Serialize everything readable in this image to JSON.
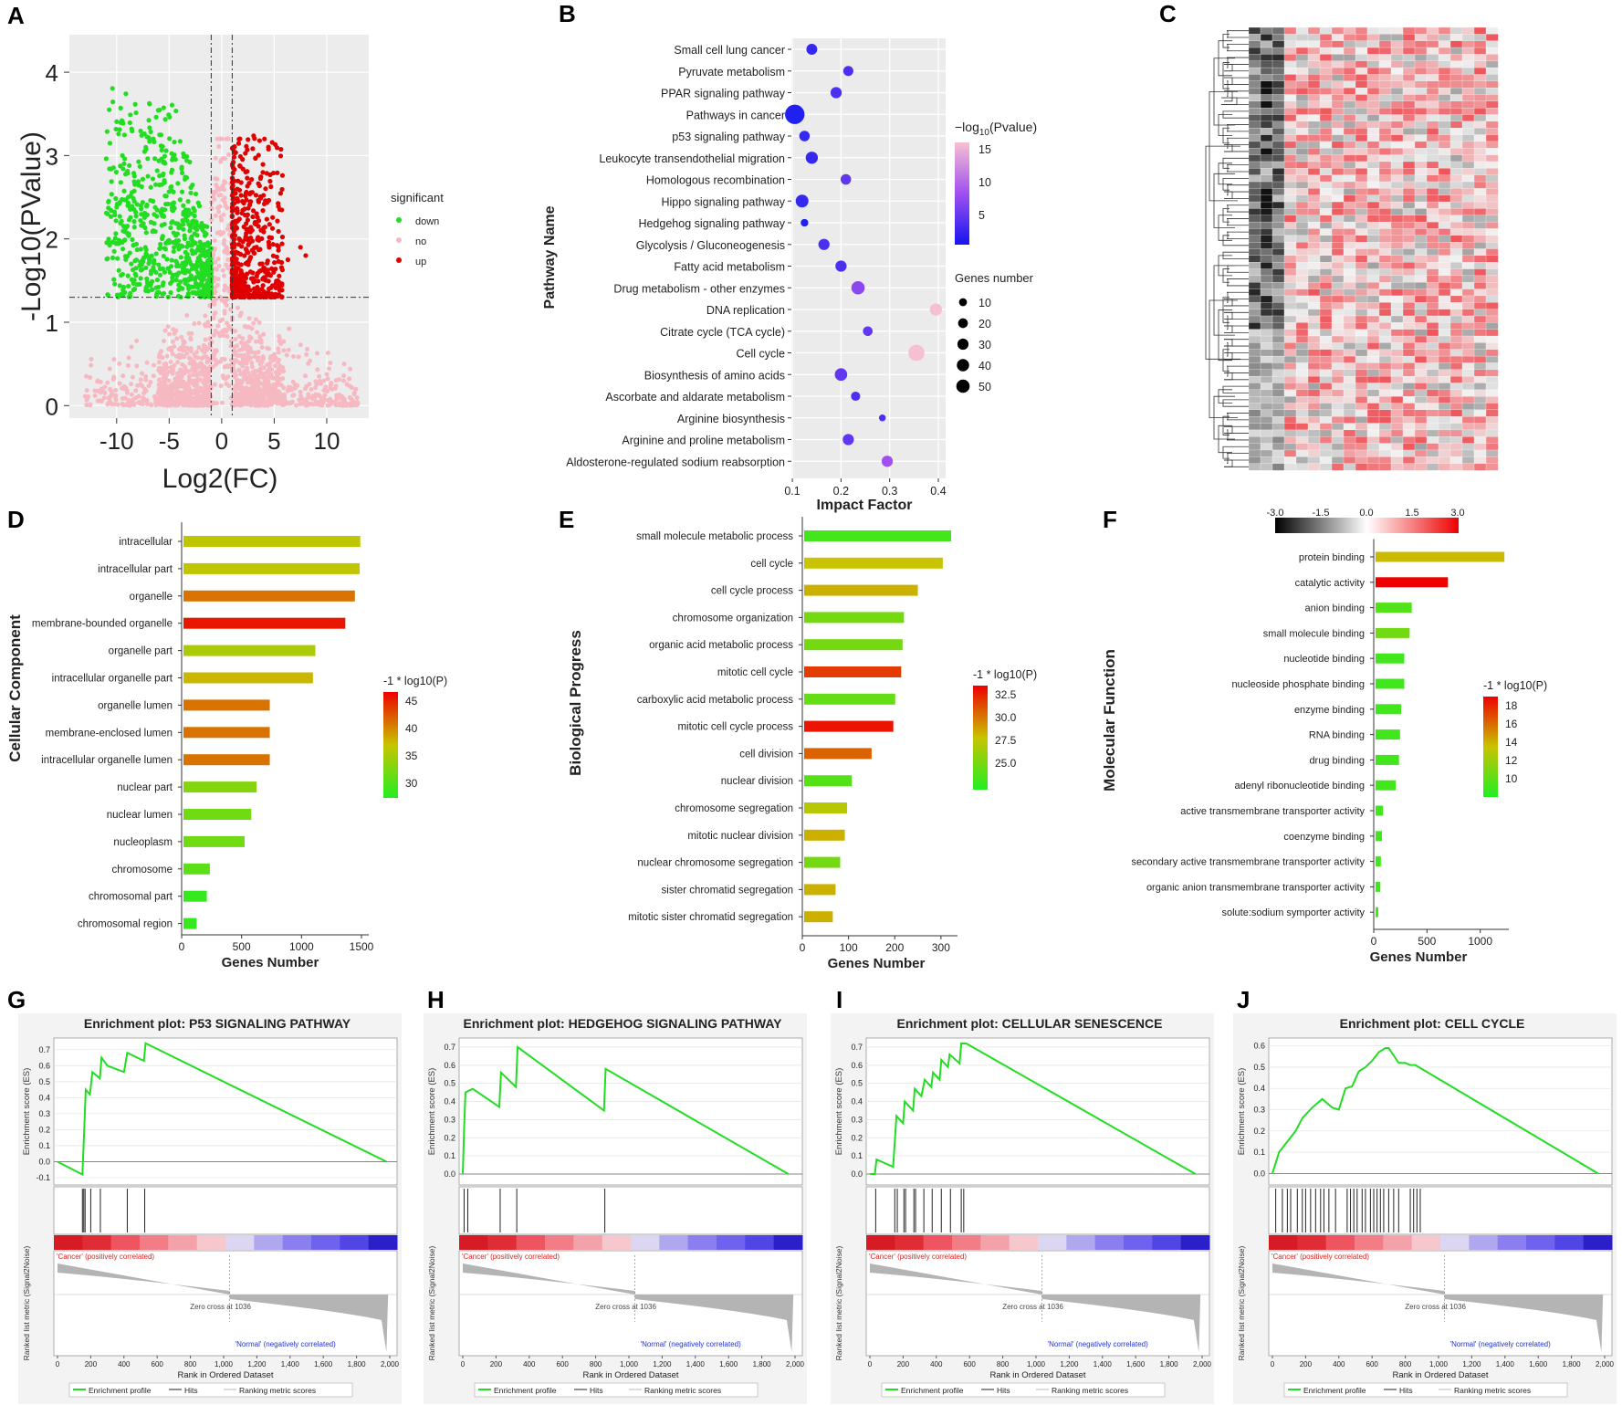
{
  "panel_letters": [
    "A",
    "B",
    "C",
    "D",
    "E",
    "F",
    "G",
    "H",
    "I",
    "J"
  ],
  "chart_data": [
    {
      "id": "A",
      "type": "scatter",
      "title": "",
      "xlabel": "Log2(FC)",
      "ylabel": "-Log10(PValue)",
      "xticks": [
        -10,
        -5,
        0,
        5,
        10
      ],
      "yticks": [
        0,
        1,
        2,
        3,
        4
      ],
      "xlim": [
        -14.5,
        14
      ],
      "ylim": [
        -0.15,
        4.45
      ],
      "thresholds": {
        "fc": [
          -1,
          1
        ],
        "p": 1.3
      },
      "legend": {
        "title": "significant",
        "entries": [
          "down",
          "no",
          "up"
        ],
        "colors": [
          "#22dd22",
          "#f6b9c2",
          "#e00000"
        ]
      }
    },
    {
      "id": "B",
      "type": "scatter",
      "xlabel": "Impact Factor",
      "ylabel": "Pathway Name",
      "xticks": [
        0.1,
        0.2,
        0.3,
        0.4
      ],
      "xlim": [
        0.098,
        0.415
      ],
      "categories": [
        "Small cell lung cancer",
        "Pyruvate metabolism",
        "PPAR signaling pathway",
        "Pathways in cancer",
        "p53 signaling pathway",
        "Leukocyte transendothelial migration",
        "Homologous recombination",
        "Hippo signaling pathway",
        "Hedgehog signaling pathway",
        "Glycolysis / Gluconeogenesis",
        "Fatty acid metabolism",
        "Drug metabolism - other enzymes",
        "DNA replication",
        "Citrate cycle (TCA cycle)",
        "Cell cycle",
        "Biosynthesis of amino acids",
        "Ascorbate and aldarate metabolism",
        "Arginine biosynthesis",
        "Arginine and proline metabolism",
        "Aldosterone-regulated sodium reabsorption"
      ],
      "x": [
        0.14,
        0.215,
        0.19,
        0.105,
        0.125,
        0.14,
        0.21,
        0.12,
        0.125,
        0.165,
        0.2,
        0.235,
        0.395,
        0.255,
        0.355,
        0.2,
        0.23,
        0.285,
        0.215,
        0.295
      ],
      "genes": [
        10,
        8,
        11,
        48,
        9,
        14,
        9,
        16,
        3,
        11,
        11,
        18,
        14,
        7,
        30,
        15,
        6,
        2,
        11,
        11
      ],
      "pvalue": [
        4,
        5,
        5,
        3,
        4,
        4,
        6,
        4,
        3,
        5,
        5,
        8,
        15,
        6,
        15,
        6,
        5,
        5,
        6,
        9
      ],
      "color_legend": {
        "title_prefix": "−log",
        "title_sub": "10",
        "title_suffix": "(Pvalue)",
        "ticks": [
          "15",
          "10",
          "5"
        ]
      },
      "size_legend": {
        "title": "Genes number",
        "ticks": [
          "10",
          "20",
          "30",
          "40",
          "50"
        ]
      }
    },
    {
      "id": "C",
      "type": "heatmap",
      "rows": 66,
      "cols": 21,
      "colorbar_ticks": [
        "-3.0",
        "-1.5",
        "0.0",
        "1.5",
        "3.0"
      ],
      "vmin": -3.0,
      "vmax": 3.0
    },
    {
      "id": "D",
      "type": "bar",
      "orientation": "horizontal",
      "xlabel": "Genes Number",
      "ylabel": "Cellular Component",
      "xticks": [
        0,
        500,
        1000,
        1500
      ],
      "xlim": [
        0,
        1500
      ],
      "categories": [
        "intracellular",
        "intracellular part",
        "organelle",
        "membrane-bounded organelle",
        "organelle part",
        "intracellular organelle part",
        "organelle lumen",
        "membrane-enclosed lumen",
        "intracellular organelle lumen",
        "nuclear part",
        "nuclear lumen",
        "nucleoplasm",
        "chromosome",
        "chromosomal part",
        "chromosomal region"
      ],
      "values": [
        1475,
        1470,
        1430,
        1350,
        1100,
        1080,
        720,
        720,
        720,
        610,
        565,
        510,
        220,
        195,
        110
      ],
      "logp": [
        37,
        37,
        41,
        45,
        36,
        38,
        41,
        41,
        41,
        34,
        33,
        33,
        32,
        30,
        30
      ],
      "legend": {
        "title": "-1 * log10(P)",
        "ticks": [
          "45",
          "40",
          "35",
          "30"
        ],
        "min": 29,
        "max": 46
      }
    },
    {
      "id": "E",
      "type": "bar",
      "orientation": "horizontal",
      "xlabel": "Genes Number",
      "ylabel": "Biological Progress",
      "xticks": [
        0,
        100,
        200,
        300
      ],
      "xlim": [
        0,
        320
      ],
      "categories": [
        "small molecule metabolic process",
        "cell cycle",
        "cell cycle process",
        "chromosome organization",
        "organic acid metabolic process",
        "mitotic cell cycle",
        "carboxylic acid metabolic process",
        "mitotic cell cycle process",
        "cell division",
        "nuclear division",
        "chromosome segregation",
        "mitotic nuclear division",
        "nuclear chromosome segregation",
        "sister chromatid segregation",
        "mitotic sister chromatid segregation"
      ],
      "values": [
        318,
        300,
        246,
        216,
        213,
        210,
        197,
        193,
        146,
        103,
        93,
        88,
        78,
        68,
        62
      ],
      "logp": [
        24.5,
        28.5,
        29,
        26,
        26,
        32,
        25.5,
        33,
        31,
        25,
        28,
        29,
        26,
        29,
        29
      ],
      "legend": {
        "title": "-1 * log10(P)",
        "ticks": [
          "32.5",
          "30.0",
          "27.5",
          "25.0"
        ],
        "min": 23.5,
        "max": 33.5
      }
    },
    {
      "id": "F",
      "type": "bar",
      "orientation": "horizontal",
      "xlabel": "Genes Number",
      "ylabel": "Molecular Function",
      "xticks": [
        0,
        500,
        1000
      ],
      "xlim": [
        0,
        1200
      ],
      "categories": [
        "protein binding",
        "catalytic activity",
        "anion binding",
        "small molecule binding",
        "nucleotide binding",
        "nucleoside phosphate binding",
        "enzyme binding",
        "RNA binding",
        "drug binding",
        "adenyl ribonucleotide binding",
        "active transmembrane transporter activity",
        "coenzyme binding",
        "secondary active transmembrane transporter activity",
        "organic anion transmembrane transporter activity",
        "solute:sodium symporter activity"
      ],
      "values": [
        1210,
        680,
        340,
        320,
        270,
        270,
        240,
        230,
        220,
        190,
        70,
        60,
        50,
        45,
        25
      ],
      "logp": [
        14,
        19,
        10,
        11,
        9.5,
        9.5,
        9.5,
        9.5,
        9.5,
        9.5,
        9.5,
        9.5,
        9.5,
        9.5,
        9.5
      ],
      "legend": {
        "title": "-1 * log10(P)",
        "ticks": [
          "18",
          "16",
          "14",
          "12",
          "10"
        ],
        "min": 8.5,
        "max": 19
      }
    }
  ],
  "gsea": [
    {
      "id": "G",
      "title": "Enrichment plot: P53 SIGNALING PATHWAY",
      "es_ticks": [
        "0.7",
        "0.6",
        "0.5",
        "0.4",
        "0.3",
        "0.2",
        "0.1",
        "0.0",
        "-0.1"
      ],
      "es_min": -0.1,
      "es_max": 0.75,
      "curve_x": [
        0,
        150,
        160,
        170,
        195,
        210,
        255,
        265,
        300,
        400,
        420,
        520,
        530,
        1980
      ],
      "curve_es": [
        0.0,
        -0.08,
        0.18,
        0.45,
        0.42,
        0.56,
        0.52,
        0.65,
        0.6,
        0.56,
        0.68,
        0.63,
        0.74,
        0.0
      ],
      "hits": [
        150,
        158,
        166,
        200,
        258,
        420,
        525
      ]
    },
    {
      "id": "H",
      "title": "Enrichment plot: HEDGEHOG SIGNALING PATHWAY",
      "es_ticks": [
        "0.7",
        "0.6",
        "0.5",
        "0.4",
        "0.3",
        "0.2",
        "0.1",
        "0.0"
      ],
      "es_min": -0.02,
      "es_max": 0.73,
      "curve_x": [
        0,
        8,
        16,
        60,
        220,
        230,
        320,
        330,
        850,
        860,
        1960
      ],
      "curve_es": [
        0.0,
        0.25,
        0.45,
        0.47,
        0.37,
        0.56,
        0.48,
        0.7,
        0.35,
        0.58,
        0.0
      ],
      "hits": [
        8,
        30,
        225,
        325,
        855
      ]
    },
    {
      "id": "I",
      "title": "Enrichment plot: CELLULAR SENESCENCE",
      "es_ticks": [
        "0.7",
        "0.6",
        "0.5",
        "0.4",
        "0.3",
        "0.2",
        "0.1",
        "0.0"
      ],
      "es_min": -0.02,
      "es_max": 0.73,
      "curve_x": [
        0,
        30,
        40,
        140,
        160,
        200,
        210,
        260,
        270,
        310,
        330,
        370,
        380,
        420,
        430,
        470,
        480,
        540,
        550,
        580,
        1960
      ],
      "curve_es": [
        0.0,
        0.0,
        0.08,
        0.04,
        0.32,
        0.28,
        0.4,
        0.35,
        0.47,
        0.43,
        0.52,
        0.48,
        0.56,
        0.52,
        0.63,
        0.59,
        0.66,
        0.61,
        0.72,
        0.72,
        0.0
      ],
      "hits": [
        35,
        150,
        165,
        205,
        215,
        265,
        275,
        325,
        375,
        430,
        485,
        550,
        565
      ]
    },
    {
      "id": "J",
      "title": "Enrichment plot: CELL CYCLE",
      "es_ticks": [
        "0.6",
        "0.5",
        "0.4",
        "0.3",
        "0.2",
        "0.1",
        "0.0"
      ],
      "es_min": -0.02,
      "es_max": 0.62,
      "curve_x": [
        0,
        40,
        80,
        140,
        180,
        240,
        300,
        360,
        400,
        440,
        480,
        520,
        560,
        600,
        640,
        680,
        700,
        760,
        800,
        830,
        860,
        1960
      ],
      "curve_es": [
        0.0,
        0.1,
        0.14,
        0.2,
        0.26,
        0.31,
        0.35,
        0.31,
        0.3,
        0.4,
        0.41,
        0.48,
        0.5,
        0.53,
        0.57,
        0.59,
        0.59,
        0.52,
        0.52,
        0.51,
        0.51,
        0.0
      ],
      "hits": [
        20,
        60,
        90,
        110,
        150,
        180,
        200,
        230,
        260,
        290,
        310,
        340,
        380,
        450,
        470,
        490,
        510,
        540,
        560,
        590,
        610,
        630,
        650,
        670,
        700,
        730,
        760,
        830,
        850,
        870,
        890
      ]
    }
  ],
  "gsea_common": {
    "es_label": "Enrichment score (ES)",
    "metric_label": "Ranked list metric (Signal2Noise)",
    "rank_label": "Rank in Ordered Dataset",
    "pos_label": "'Cancer' (positively correlated)",
    "neg_label": "'Normal' (negatively correlated)",
    "zero_cross": "Zero cross at 1036",
    "xticks": [
      "0",
      "200",
      "400",
      "600",
      "800",
      "1,000",
      "1,200",
      "1,400",
      "1,600",
      "1,800",
      "2,000"
    ],
    "legend": [
      "Enrichment profile",
      "Hits",
      "Ranking metric scores"
    ],
    "line_color": "#22dd22"
  }
}
